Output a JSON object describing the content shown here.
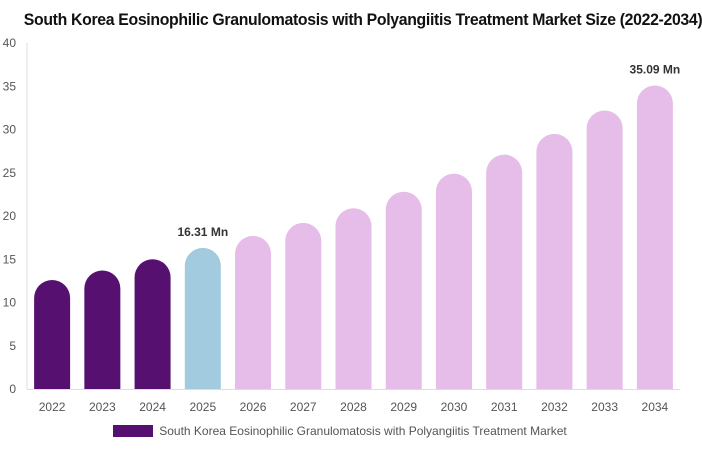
{
  "colors": {
    "historical": "#561170",
    "current": "#a3cbdf",
    "forecast": "#e6bce8",
    "axis_text": "#555555",
    "label_text": "#333333"
  },
  "chart_data": {
    "type": "bar",
    "title": "South Korea Eosinophilic Granulomatosis with Polyangiitis Treatment Market Size (2022-2034)",
    "categories": [
      "2022",
      "2023",
      "2024",
      "2025",
      "2026",
      "2027",
      "2028",
      "2029",
      "2030",
      "2031",
      "2032",
      "2033",
      "2034"
    ],
    "series": [
      {
        "name": "South Korea Eosinophilic Granulomatosis with Polyangiitis Treatment Market",
        "values": [
          12.6,
          13.7,
          15.0,
          16.31,
          17.7,
          19.2,
          20.9,
          22.8,
          24.9,
          27.1,
          29.5,
          32.2,
          35.09
        ]
      }
    ],
    "bar_colors": [
      "historical",
      "historical",
      "historical",
      "current",
      "forecast",
      "forecast",
      "forecast",
      "forecast",
      "forecast",
      "forecast",
      "forecast",
      "forecast",
      "forecast"
    ],
    "data_labels": [
      {
        "index": 3,
        "text": "16.31 Mn"
      },
      {
        "index": 12,
        "text": "35.09 Mn"
      }
    ],
    "ylim": [
      0,
      40
    ],
    "yticks": [
      0,
      5,
      10,
      15,
      20,
      25,
      30,
      35,
      40
    ],
    "xlabel": "",
    "ylabel": "",
    "grid": false,
    "legend_position": "bottom"
  }
}
